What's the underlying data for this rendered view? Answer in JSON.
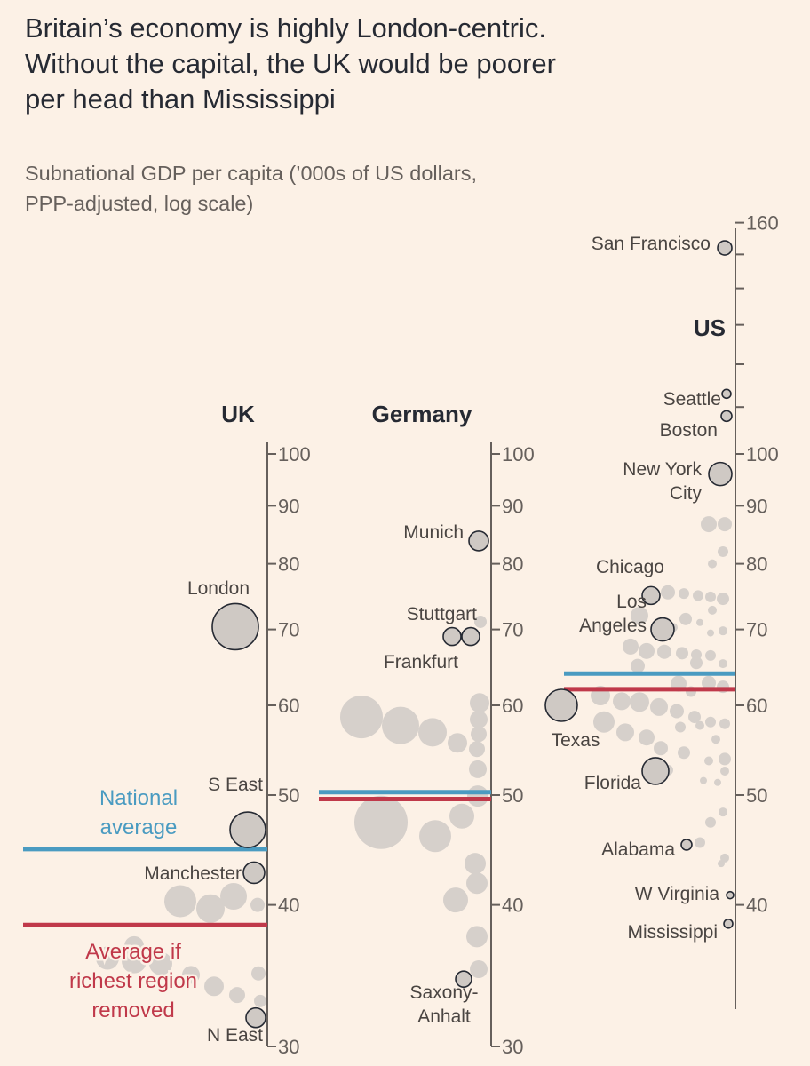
{
  "title": "Britain’s economy is highly London-centric.\nWithout the capital, the UK would be poorer\nper head than Mississippi",
  "subtitle": "Subnational GDP per capita (’000s of US dollars,\nPPP-adjusted, log scale)",
  "colors": {
    "background": "#fcf1e6",
    "axis": "#66605c",
    "bubble_highlight_fill": "#cfc9c4",
    "bubble_fill": "#d6d0cb",
    "bubble_outline": "#262a33",
    "national_average": "#4a9bc1",
    "average_without_richest": "#c0394a"
  },
  "chart_data": [
    {
      "type": "scatter",
      "scale": "log",
      "title": "UK",
      "ylim": [
        30,
        100
      ],
      "yticks": [
        30,
        40,
        50,
        60,
        70,
        80,
        90,
        100
      ],
      "legend": [
        "National average",
        "Average if richest region removed"
      ],
      "national_average": 44.8,
      "average_without_richest": 38.4,
      "labeled": [
        {
          "name": "London",
          "value": 70.4,
          "size": "large"
        },
        {
          "name": "S East",
          "value": 46.6,
          "size": "medium"
        },
        {
          "name": "Manchester",
          "value": 42.7,
          "size": "small"
        },
        {
          "name": "N East",
          "value": 31.8,
          "size": "small"
        }
      ],
      "others": [
        40.3,
        39.7,
        40.7,
        40.0,
        35.9,
        35.7,
        35.5,
        34.7,
        33.9,
        34.8,
        33.3,
        36.8,
        32.9
      ]
    },
    {
      "type": "scatter",
      "scale": "log",
      "title": "Germany",
      "ylim": [
        30,
        100
      ],
      "yticks": [
        30,
        40,
        50,
        60,
        70,
        80,
        90,
        100
      ],
      "national_average": 50.3,
      "average_without_richest": 49.6,
      "labeled": [
        {
          "name": "Munich",
          "value": 83.8,
          "size": "small"
        },
        {
          "name": "Stuttgart",
          "value": 69.0,
          "size": "small"
        },
        {
          "name": "Frankfurt",
          "value": 69.0,
          "size": "small"
        },
        {
          "name": "Saxony-\nAnhalt",
          "value": 34.4,
          "size": "small"
        }
      ],
      "others": [
        58.6,
        57.6,
        56.8,
        55.6,
        60.3,
        58.3,
        56.6,
        54.9,
        52.7,
        71.1,
        47.3,
        46.0,
        47.9,
        49.9,
        43.5,
        41.8,
        40.4,
        37.5,
        35.1
      ]
    },
    {
      "type": "scatter",
      "scale": "log",
      "title": "US",
      "ylim": [
        35,
        160
      ],
      "yticks": [
        40,
        50,
        60,
        70,
        80,
        90,
        100,
        160
      ],
      "national_average": 64.0,
      "average_without_richest": 62.0,
      "labeled": [
        {
          "name": "San Francisco",
          "value": 152,
          "size": "small"
        },
        {
          "name": "Seattle",
          "value": 113,
          "size": "tiny"
        },
        {
          "name": "Boston",
          "value": 108,
          "size": "tiny"
        },
        {
          "name": "New York\nCity",
          "value": 96,
          "size": "small"
        },
        {
          "name": "Chicago",
          "value": 75,
          "size": "small"
        },
        {
          "name": "Los\nAngeles",
          "value": 70,
          "size": "small"
        },
        {
          "name": "Texas",
          "value": 60,
          "size": "medium"
        },
        {
          "name": "Florida",
          "value": 52.5,
          "size": "small"
        },
        {
          "name": "Alabama",
          "value": 45.2,
          "size": "tiny"
        },
        {
          "name": "W Virginia",
          "value": 40.8,
          "size": "tiny"
        },
        {
          "name": "Mississippi",
          "value": 38.5,
          "size": "tiny"
        }
      ],
      "others": [
        86.7,
        86.7,
        82,
        80,
        75.5,
        75.3,
        75.0,
        74.8,
        74.5,
        72.8,
        72,
        71.5,
        71,
        70.3,
        70,
        69.8,
        69.5,
        67.6,
        67.0,
        66.9,
        66.7,
        66.5,
        66.4,
        65.3,
        65.0,
        65.4,
        62.7,
        62.8,
        62.3,
        61.7,
        61.2,
        60.5,
        60.4,
        59.8,
        59.3,
        58.6,
        58.0,
        58.0,
        57.8,
        57.4,
        57.6,
        56.8,
        56.2,
        56.0,
        55.0,
        54.5,
        53.8,
        53.6,
        52.6,
        52.5,
        51.3,
        51.5,
        48.3,
        47.3,
        45.4,
        44.0,
        43.5
      ]
    }
  ]
}
